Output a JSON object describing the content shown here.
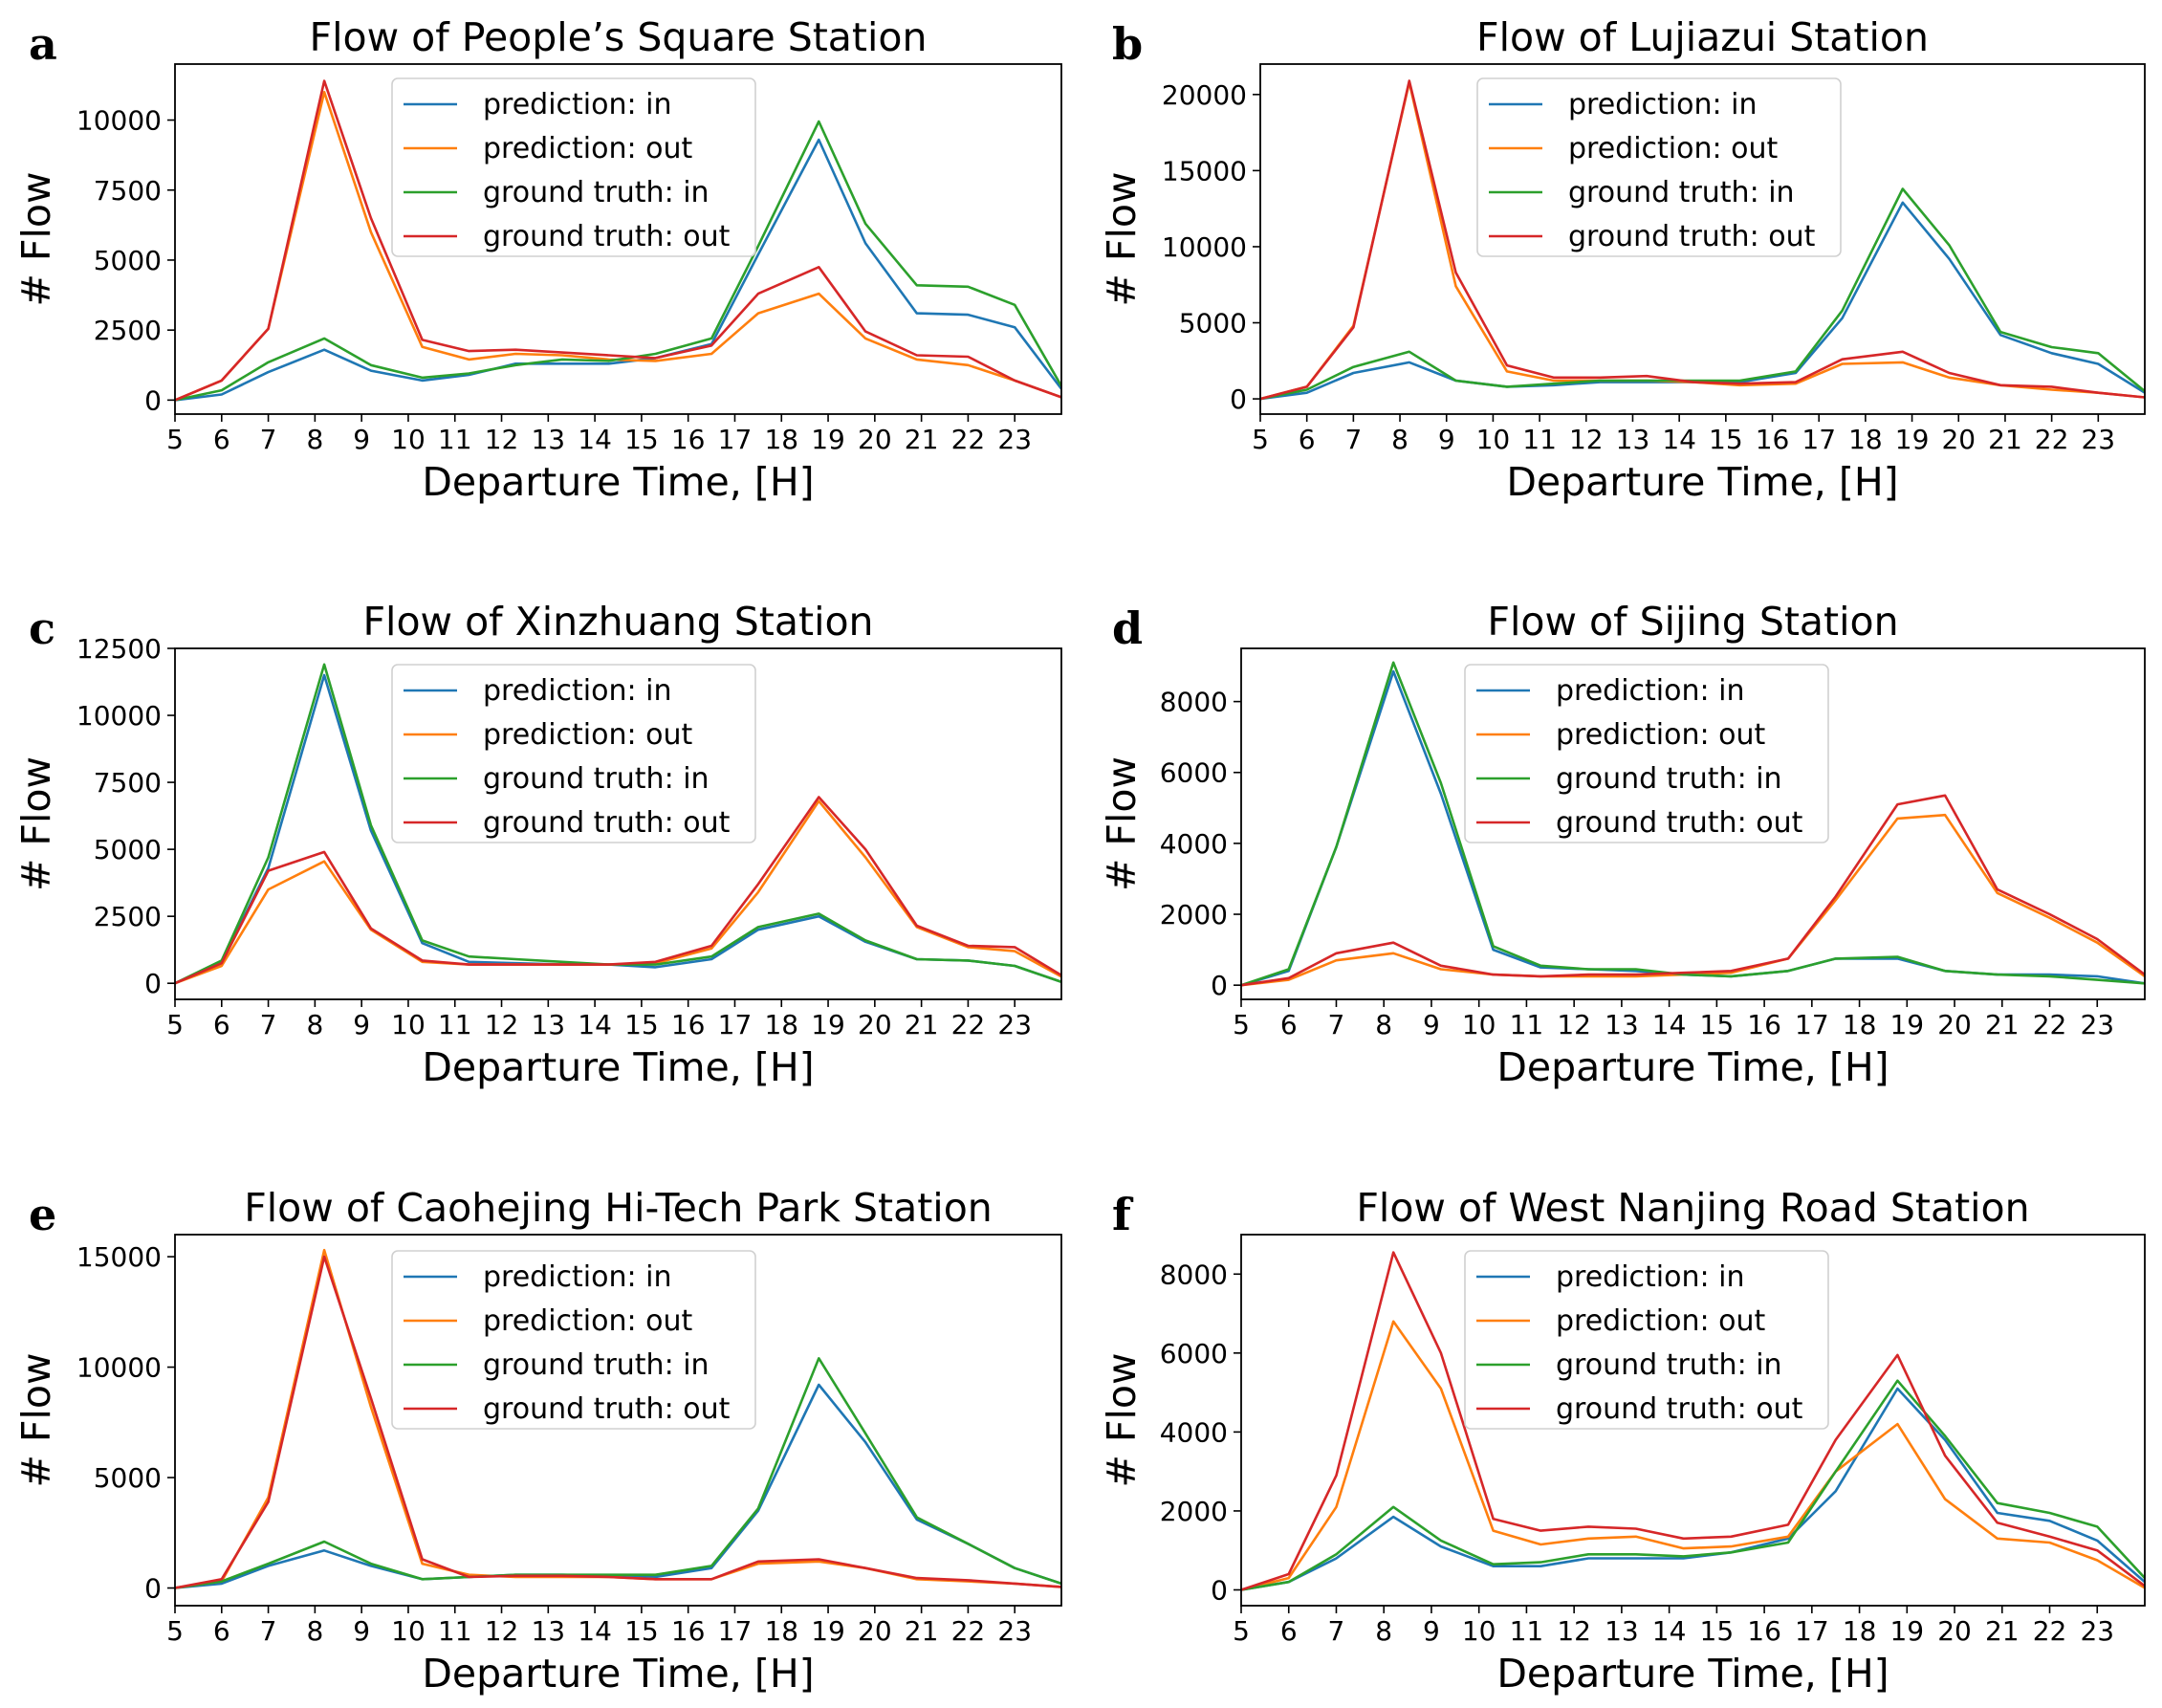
{
  "chart_data": [
    {
      "panel": "a",
      "type": "line",
      "title": "Flow of People’s Square Station",
      "xlabel": "Departure Time, [H]",
      "ylabel": "# Flow",
      "x": [
        5,
        6,
        7,
        8.2,
        9.2,
        10.3,
        11.3,
        12.3,
        13.3,
        14.3,
        15.3,
        16.5,
        17.5,
        18.8,
        19.8,
        20.9,
        22,
        23,
        24
      ],
      "xlim": [
        5,
        24
      ],
      "xticks": [
        "5",
        "6",
        "7",
        "8",
        "9",
        "10",
        "11",
        "12",
        "13",
        "14",
        "15",
        "16",
        "17",
        "18",
        "19",
        "20",
        "21",
        "22",
        "23"
      ],
      "ylim": [
        -500,
        12000
      ],
      "yticks": [
        0,
        2500,
        5000,
        7500,
        10000
      ],
      "series": [
        {
          "name": "prediction: in",
          "color": "#1f77b4",
          "values": [
            0,
            200,
            1000,
            1800,
            1050,
            700,
            900,
            1300,
            1300,
            1300,
            1500,
            2000,
            5200,
            9300,
            5600,
            3100,
            3050,
            2600,
            400
          ]
        },
        {
          "name": "prediction: out",
          "color": "#ff7f0e",
          "values": [
            0,
            700,
            2550,
            11000,
            6000,
            1900,
            1450,
            1650,
            1600,
            1450,
            1400,
            1650,
            3100,
            3800,
            2200,
            1450,
            1250,
            700,
            100
          ]
        },
        {
          "name": "ground truth: in",
          "color": "#2ca02c",
          "values": [
            0,
            350,
            1350,
            2200,
            1250,
            800,
            950,
            1250,
            1450,
            1400,
            1650,
            2200,
            5500,
            9950,
            6300,
            4100,
            4050,
            3400,
            500
          ]
        },
        {
          "name": "ground truth: out",
          "color": "#d62728",
          "values": [
            0,
            700,
            2550,
            11400,
            6500,
            2150,
            1750,
            1800,
            1700,
            1600,
            1500,
            1950,
            3800,
            4750,
            2450,
            1600,
            1550,
            700,
            100
          ]
        }
      ],
      "legend": "upper center"
    },
    {
      "panel": "b",
      "type": "line",
      "title": "Flow of Lujiazui Station",
      "xlabel": "Departure Time, [H]",
      "ylabel": "# Flow",
      "x": [
        5,
        6,
        7,
        8.2,
        9.2,
        10.3,
        11.3,
        12.3,
        13.3,
        14.3,
        15.3,
        16.5,
        17.5,
        18.8,
        19.8,
        20.9,
        22,
        23,
        24
      ],
      "xlim": [
        5,
        24
      ],
      "xticks": [
        "5",
        "6",
        "7",
        "8",
        "9",
        "10",
        "11",
        "12",
        "13",
        "14",
        "15",
        "16",
        "17",
        "18",
        "19",
        "20",
        "21",
        "22",
        "23"
      ],
      "ylim": [
        -1000,
        22000
      ],
      "yticks": [
        0,
        5000,
        10000,
        15000,
        20000
      ],
      "series": [
        {
          "name": "prediction: in",
          "color": "#1f77b4",
          "values": [
            0,
            400,
            1700,
            2400,
            1200,
            800,
            900,
            1100,
            1100,
            1100,
            1100,
            1700,
            5300,
            12900,
            9200,
            4200,
            3000,
            2300,
            400
          ]
        },
        {
          "name": "prediction: out",
          "color": "#ff7f0e",
          "values": [
            0,
            800,
            4800,
            20800,
            7400,
            1800,
            1200,
            1200,
            1200,
            1100,
            900,
            1000,
            2300,
            2400,
            1400,
            900,
            600,
            400,
            100
          ]
        },
        {
          "name": "ground truth: in",
          "color": "#2ca02c",
          "values": [
            0,
            600,
            2100,
            3100,
            1200,
            800,
            1000,
            1200,
            1200,
            1200,
            1200,
            1800,
            5800,
            13800,
            10100,
            4400,
            3400,
            3000,
            500
          ]
        },
        {
          "name": "ground truth: out",
          "color": "#d62728",
          "values": [
            0,
            800,
            4700,
            20900,
            8300,
            2200,
            1400,
            1400,
            1500,
            1100,
            1000,
            1100,
            2600,
            3100,
            1700,
            900,
            800,
            400,
            100
          ]
        }
      ],
      "legend": "upper center"
    },
    {
      "panel": "c",
      "type": "line",
      "title": "Flow of Xinzhuang Station",
      "xlabel": "Departure Time, [H]",
      "ylabel": "# Flow",
      "x": [
        5,
        6,
        7,
        8.2,
        9.2,
        10.3,
        11.3,
        12.3,
        13.3,
        14.3,
        15.3,
        16.5,
        17.5,
        18.8,
        19.8,
        20.9,
        22,
        23,
        24
      ],
      "xlim": [
        5,
        24
      ],
      "xticks": [
        "5",
        "6",
        "7",
        "8",
        "9",
        "10",
        "11",
        "12",
        "13",
        "14",
        "15",
        "16",
        "17",
        "18",
        "19",
        "20",
        "21",
        "22",
        "23"
      ],
      "ylim": [
        -600,
        12500
      ],
      "yticks": [
        0,
        2500,
        5000,
        7500,
        10000,
        12500
      ],
      "series": [
        {
          "name": "prediction: in",
          "color": "#1f77b4",
          "values": [
            0,
            800,
            4300,
            11500,
            5700,
            1500,
            800,
            750,
            700,
            700,
            600,
            900,
            2000,
            2500,
            1550,
            900,
            850,
            650,
            50
          ]
        },
        {
          "name": "prediction: out",
          "color": "#ff7f0e",
          "values": [
            0,
            650,
            3500,
            4550,
            2000,
            800,
            700,
            700,
            700,
            700,
            750,
            1300,
            3400,
            6800,
            4700,
            2100,
            1350,
            1200,
            250
          ]
        },
        {
          "name": "ground truth: in",
          "color": "#2ca02c",
          "values": [
            0,
            850,
            4700,
            11900,
            5900,
            1600,
            1000,
            900,
            800,
            700,
            700,
            1000,
            2100,
            2600,
            1600,
            900,
            850,
            650,
            50
          ]
        },
        {
          "name": "ground truth: out",
          "color": "#d62728",
          "values": [
            0,
            750,
            4200,
            4900,
            2050,
            850,
            700,
            700,
            700,
            700,
            800,
            1400,
            3700,
            6950,
            5000,
            2150,
            1400,
            1350,
            300
          ]
        }
      ],
      "legend": "upper center"
    },
    {
      "panel": "d",
      "type": "line",
      "title": "Flow of Sijing Station",
      "xlabel": "Departure Time, [H]",
      "ylabel": "# Flow",
      "x": [
        5,
        6,
        7,
        8.2,
        9.2,
        10.3,
        11.3,
        12.3,
        13.3,
        14.3,
        15.3,
        16.5,
        17.5,
        18.8,
        19.8,
        20.9,
        22,
        23,
        24
      ],
      "xlim": [
        5,
        24
      ],
      "xticks": [
        "5",
        "6",
        "7",
        "8",
        "9",
        "10",
        "11",
        "12",
        "13",
        "14",
        "15",
        "16",
        "17",
        "18",
        "19",
        "20",
        "21",
        "22",
        "23"
      ],
      "ylim": [
        -400,
        9500
      ],
      "yticks": [
        0,
        2000,
        4000,
        6000,
        8000
      ],
      "series": [
        {
          "name": "prediction: in",
          "color": "#1f77b4",
          "values": [
            0,
            400,
            3900,
            8850,
            5400,
            1000,
            500,
            450,
            400,
            300,
            250,
            400,
            750,
            750,
            400,
            300,
            300,
            250,
            50
          ]
        },
        {
          "name": "prediction: out",
          "color": "#ff7f0e",
          "values": [
            0,
            150,
            700,
            900,
            450,
            300,
            250,
            250,
            250,
            300,
            350,
            750,
            2400,
            4700,
            4800,
            2600,
            1900,
            1200,
            250
          ]
        },
        {
          "name": "ground truth: in",
          "color": "#2ca02c",
          "values": [
            0,
            450,
            3900,
            9100,
            5700,
            1100,
            550,
            450,
            450,
            300,
            250,
            400,
            750,
            800,
            400,
            300,
            250,
            150,
            50
          ]
        },
        {
          "name": "ground truth: out",
          "color": "#d62728",
          "values": [
            0,
            200,
            900,
            1200,
            550,
            300,
            250,
            300,
            300,
            350,
            400,
            750,
            2500,
            5100,
            5350,
            2700,
            2000,
            1300,
            300
          ]
        }
      ],
      "legend": "upper center"
    },
    {
      "panel": "e",
      "type": "line",
      "title": "Flow of Caohejing Hi-Tech Park Station",
      "xlabel": "Departure Time, [H]",
      "ylabel": "# Flow",
      "x": [
        5,
        6,
        7,
        8.2,
        9.2,
        10.3,
        11.3,
        12.3,
        13.3,
        14.3,
        15.3,
        16.5,
        17.5,
        18.8,
        19.8,
        20.9,
        22,
        23,
        24
      ],
      "xlim": [
        5,
        24
      ],
      "xticks": [
        "5",
        "6",
        "7",
        "8",
        "9",
        "10",
        "11",
        "12",
        "13",
        "14",
        "15",
        "16",
        "17",
        "18",
        "19",
        "20",
        "21",
        "22",
        "23"
      ],
      "ylim": [
        -800,
        16000
      ],
      "yticks": [
        0,
        5000,
        10000,
        15000
      ],
      "series": [
        {
          "name": "prediction: in",
          "color": "#1f77b4",
          "values": [
            0,
            200,
            1000,
            1700,
            1000,
            400,
            500,
            600,
            600,
            550,
            500,
            900,
            3500,
            9200,
            6600,
            3100,
            2000,
            900,
            200
          ]
        },
        {
          "name": "prediction: out",
          "color": "#ff7f0e",
          "values": [
            0,
            300,
            4100,
            15300,
            8200,
            1100,
            600,
            500,
            500,
            500,
            400,
            400,
            1100,
            1200,
            900,
            400,
            300,
            200,
            50
          ]
        },
        {
          "name": "ground truth: in",
          "color": "#2ca02c",
          "values": [
            0,
            300,
            1100,
            2100,
            1100,
            400,
            500,
            600,
            600,
            600,
            600,
            1000,
            3600,
            10400,
            7000,
            3200,
            2000,
            900,
            200
          ]
        },
        {
          "name": "ground truth: out",
          "color": "#d62728",
          "values": [
            0,
            400,
            3900,
            15000,
            8600,
            1300,
            500,
            550,
            550,
            500,
            400,
            400,
            1200,
            1300,
            900,
            450,
            350,
            200,
            50
          ]
        }
      ],
      "legend": "upper center"
    },
    {
      "panel": "f",
      "type": "line",
      "title": "Flow of West Nanjing Road Station",
      "xlabel": "Departure Time, [H]",
      "ylabel": "# Flow",
      "x": [
        5,
        6,
        7,
        8.2,
        9.2,
        10.3,
        11.3,
        12.3,
        13.3,
        14.3,
        15.3,
        16.5,
        17.5,
        18.8,
        19.8,
        20.9,
        22,
        23,
        24
      ],
      "xlim": [
        5,
        24
      ],
      "xticks": [
        "5",
        "6",
        "7",
        "8",
        "9",
        "10",
        "11",
        "12",
        "13",
        "14",
        "15",
        "16",
        "17",
        "18",
        "19",
        "20",
        "21",
        "22",
        "23"
      ],
      "ylim": [
        -400,
        9000
      ],
      "yticks": [
        0,
        2000,
        4000,
        6000,
        8000
      ],
      "series": [
        {
          "name": "prediction: in",
          "color": "#1f77b4",
          "values": [
            0,
            200,
            800,
            1850,
            1100,
            600,
            600,
            800,
            800,
            800,
            950,
            1300,
            2500,
            5100,
            3800,
            1950,
            1750,
            1250,
            200
          ]
        },
        {
          "name": "prediction: out",
          "color": "#ff7f0e",
          "values": [
            0,
            300,
            2100,
            6800,
            5100,
            1500,
            1150,
            1300,
            1350,
            1050,
            1100,
            1350,
            3000,
            4200,
            2300,
            1300,
            1200,
            750,
            50
          ]
        },
        {
          "name": "ground truth: in",
          "color": "#2ca02c",
          "values": [
            0,
            200,
            900,
            2100,
            1250,
            650,
            700,
            900,
            900,
            850,
            950,
            1200,
            3000,
            5300,
            3900,
            2200,
            1950,
            1600,
            300
          ]
        },
        {
          "name": "ground truth: out",
          "color": "#d62728",
          "values": [
            0,
            400,
            2900,
            8550,
            6000,
            1800,
            1500,
            1600,
            1550,
            1300,
            1350,
            1650,
            3800,
            5950,
            3400,
            1700,
            1350,
            1000,
            100
          ]
        }
      ],
      "legend": "upper center"
    }
  ]
}
